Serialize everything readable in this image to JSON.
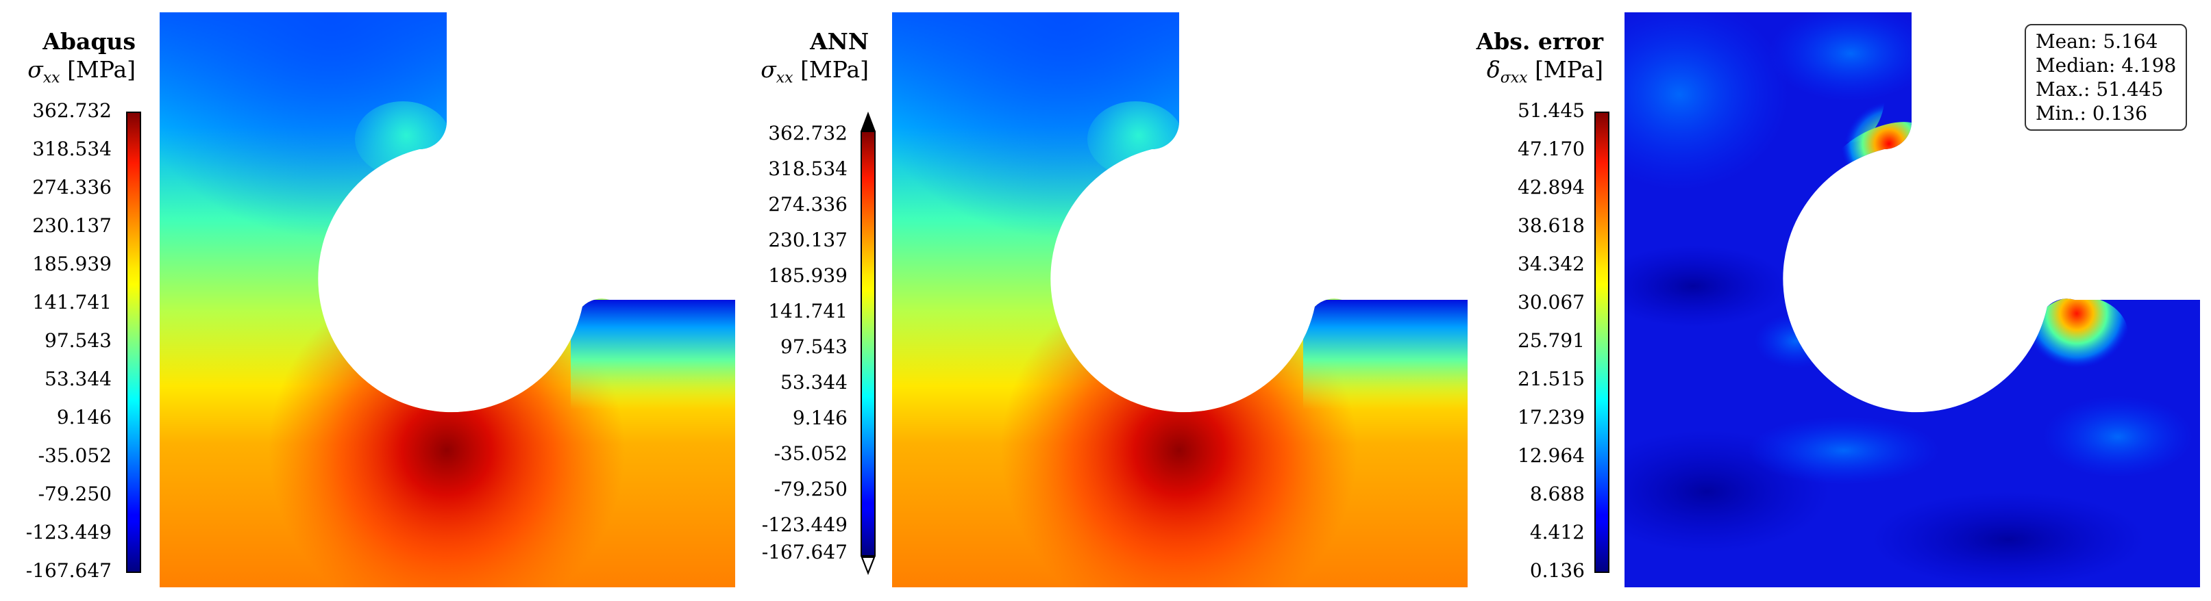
{
  "chart_data": [
    {
      "type": "heatmap",
      "title": "Abaqus",
      "colorbar_label": "σ",
      "colorbar_subscript": "xx",
      "colorbar_unit": "[MPa]",
      "colormap": "jet",
      "colorbar_ticks": [
        "362.732",
        "318.534",
        "274.336",
        "230.137",
        "185.939",
        "141.741",
        "97.543",
        "53.344",
        "9.146",
        "-35.052",
        "-79.250",
        "-123.449",
        "-167.647"
      ],
      "vmin": -167.647,
      "vmax": 362.732,
      "colorbar_extend": false
    },
    {
      "type": "heatmap",
      "title": "ANN",
      "colorbar_label": "σ",
      "colorbar_subscript": "xx",
      "colorbar_unit": "[MPa]",
      "colormap": "jet",
      "colorbar_ticks": [
        "362.732",
        "318.534",
        "274.336",
        "230.137",
        "185.939",
        "141.741",
        "97.543",
        "53.344",
        "9.146",
        "-35.052",
        "-79.250",
        "-123.449",
        "-167.647"
      ],
      "vmin": -167.647,
      "vmax": 362.732,
      "colorbar_extend": true
    },
    {
      "type": "heatmap",
      "title": "Abs. error",
      "colorbar_label": "δ",
      "colorbar_subscript": "σxx",
      "colorbar_unit": "[MPa]",
      "colormap": "jet",
      "colorbar_ticks": [
        "51.445",
        "47.170",
        "42.894",
        "38.618",
        "34.342",
        "30.067",
        "25.791",
        "21.515",
        "17.239",
        "12.964",
        "8.688",
        "4.412",
        "0.136"
      ],
      "vmin": 0.136,
      "vmax": 51.445,
      "colorbar_extend": false,
      "stats": [
        {
          "label": "Mean:",
          "value": "5.164"
        },
        {
          "label": "Median:",
          "value": "4.198"
        },
        {
          "label": "Max.:",
          "value": "51.445"
        },
        {
          "label": "Min.:",
          "value": "0.136"
        }
      ]
    }
  ]
}
